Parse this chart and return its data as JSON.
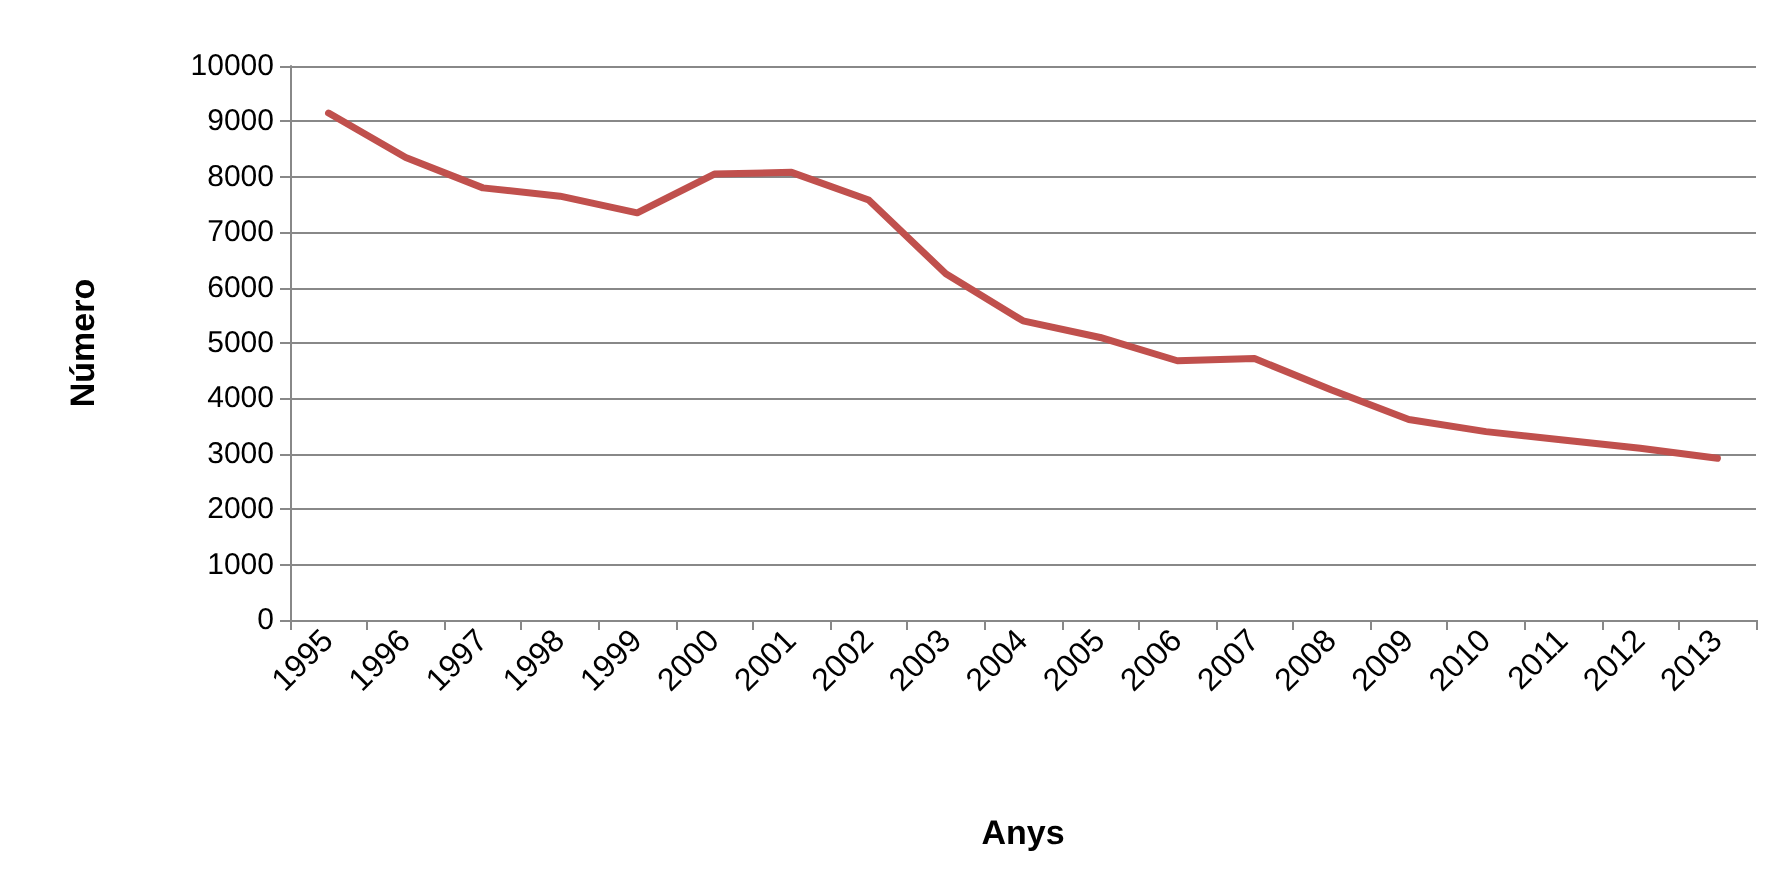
{
  "chart_data": {
    "type": "line",
    "xlabel": "Anys",
    "ylabel": "Número",
    "categories": [
      "1995",
      "1996",
      "1997",
      "1998",
      "1999",
      "2000",
      "2001",
      "2002",
      "2003",
      "2004",
      "2005",
      "2006",
      "2007",
      "2008",
      "2009",
      "2010",
      "2011",
      "2012",
      "2013"
    ],
    "series": [
      {
        "color": "#c0504d",
        "values": [
          9150,
          8350,
          7800,
          7650,
          7350,
          8050,
          8080,
          7580,
          6250,
          5400,
          5100,
          4680,
          4720,
          4150,
          3620,
          3400,
          3250,
          3100,
          2920
        ]
      }
    ],
    "ylim": [
      0,
      10000
    ],
    "yticks": [
      0,
      1000,
      2000,
      3000,
      4000,
      5000,
      6000,
      7000,
      8000,
      9000,
      10000
    ],
    "grid": "y",
    "marker": "none",
    "line_style": "solid"
  }
}
